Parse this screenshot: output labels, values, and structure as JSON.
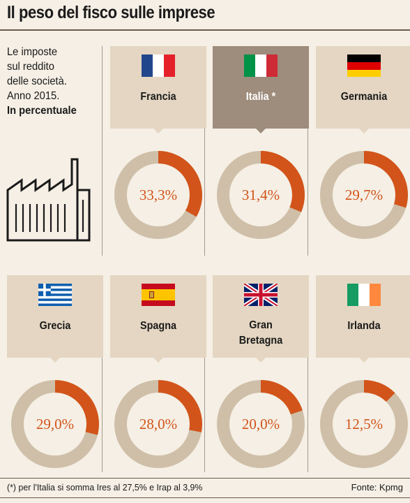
{
  "title": "Il peso del fisco sulle imprese",
  "intro": {
    "lines": [
      "Le imposte",
      "sul reddito",
      "delle società.",
      "Anno 2015."
    ],
    "unit_label": "In percentuale"
  },
  "colors": {
    "accent": "#d2541a",
    "remainder": "#cfbfa8",
    "card": "#e4d6c2",
    "card_highlight": "#9e8c7c",
    "background": "#f5efe5"
  },
  "chart_data": {
    "type": "donut",
    "unit": "%",
    "max": 100,
    "countries": [
      {
        "name": "Francia",
        "value": 33.3,
        "label": "33,3%",
        "flag": "flag-france",
        "highlight": false
      },
      {
        "name": "Italia *",
        "value": 31.4,
        "label": "31,4%",
        "flag": "flag-italy",
        "highlight": true
      },
      {
        "name": "Germania",
        "value": 29.7,
        "label": "29,7%",
        "flag": "flag-germany",
        "highlight": false
      },
      {
        "name": "Grecia",
        "value": 29.0,
        "label": "29,0%",
        "flag": "flag-greece",
        "highlight": false
      },
      {
        "name": "Spagna",
        "value": 28.0,
        "label": "28,0%",
        "flag": "flag-spain",
        "highlight": false
      },
      {
        "name": "Gran Bretagna",
        "name_lines": [
          "Gran",
          "Bretagna"
        ],
        "value": 20.0,
        "label": "20,0%",
        "flag": "flag-uk",
        "highlight": false
      },
      {
        "name": "Irlanda",
        "value": 12.5,
        "label": "12,5%",
        "flag": "flag-ireland",
        "highlight": false
      }
    ]
  },
  "footer": {
    "note": "(*) per l'Italia si somma Ires al 27,5% e Irap al 3,9%",
    "source": "Fonte: Kpmg"
  }
}
